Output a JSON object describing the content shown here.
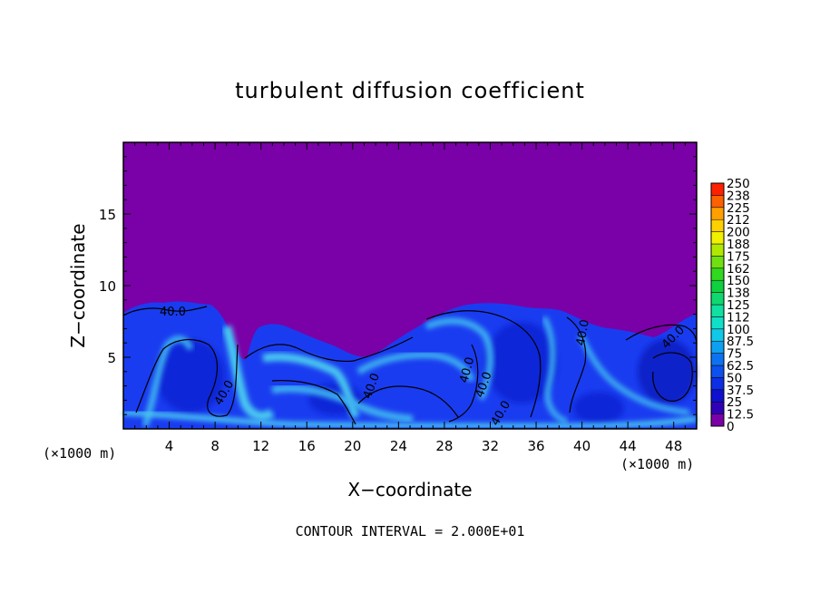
{
  "chart_data": {
    "type": "heatmap",
    "title": "turbulent diffusion coefficient",
    "xlabel": "X−coordinate",
    "ylabel": "Z−coordinate",
    "x_unit_left": "(×1000 m)",
    "x_unit_right": "(×1000 m)",
    "xlim": [
      0,
      50
    ],
    "ylim": [
      0,
      20
    ],
    "x_ticks": [
      4,
      8,
      12,
      16,
      20,
      24,
      28,
      32,
      36,
      40,
      44,
      48
    ],
    "y_ticks": [
      5,
      10,
      15
    ],
    "contour_interval_text": "CONTOUR INTERVAL = 2.000E+01",
    "contour_labels": [
      "40.0",
      "40.0",
      "40.0",
      "40.0",
      "40.0",
      "40.0",
      "40.0",
      "40.0"
    ],
    "colorbar": {
      "levels": [
        "0",
        "12.5",
        "25",
        "37.5",
        "50",
        "62.5",
        "75",
        "87.5",
        "100",
        "112",
        "125",
        "138",
        "150",
        "162",
        "175",
        "188",
        "200",
        "212",
        "225",
        "238",
        "250"
      ],
      "colors": [
        "#7a00a8",
        "#3000b8",
        "#1010d0",
        "#0c2ee6",
        "#0c50ee",
        "#0d72f2",
        "#0ea0f0",
        "#10c8e8",
        "#10e0c8",
        "#10e0a0",
        "#10d870",
        "#10d040",
        "#30d820",
        "#70e010",
        "#b0e800",
        "#f0f000",
        "#ffd000",
        "#ffa000",
        "#ff6000",
        "#ff2000",
        "#ff8080"
      ]
    },
    "background_color": "#7a00a8",
    "turbulent_layer_color": "#1a3cf0",
    "high_value_color": "#48c8f0"
  }
}
